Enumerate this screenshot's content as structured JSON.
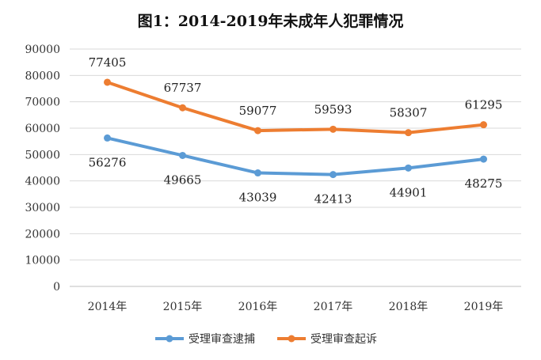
{
  "chart_data": {
    "type": "line",
    "title": "图1：2014-2019年未成年人犯罪情况",
    "categories": [
      "2014年",
      "2015年",
      "2016年",
      "2017年",
      "2018年",
      "2019年"
    ],
    "series": [
      {
        "name": "受理审查逮捕",
        "color": "#5b9bd5",
        "values": [
          56276,
          49665,
          43039,
          42413,
          44901,
          48275
        ]
      },
      {
        "name": "受理审查起诉",
        "color": "#ed7d31",
        "values": [
          77405,
          67737,
          59077,
          59593,
          58307,
          61295
        ]
      }
    ],
    "ylim": [
      0,
      90000
    ],
    "yticks": [
      "0",
      "10000",
      "20000",
      "30000",
      "40000",
      "50000",
      "60000",
      "70000",
      "80000",
      "90000"
    ],
    "grid": true,
    "legend": "bottom"
  }
}
